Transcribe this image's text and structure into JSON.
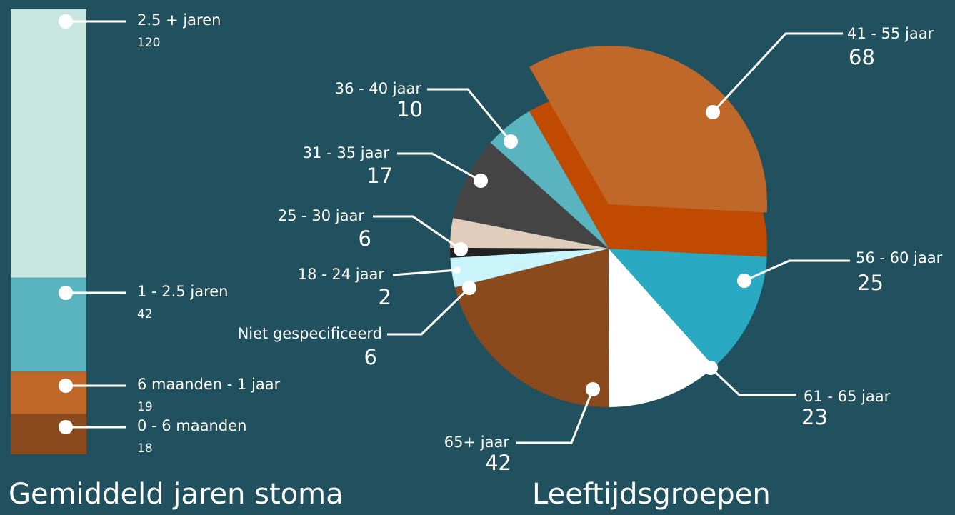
{
  "chart_data": [
    {
      "type": "stacked-column",
      "title": "Gemiddeld jaren stoma",
      "categories": [
        "2.5 + jaren",
        "1 - 2.5 jaren",
        "6 maanden - 1 jaar",
        "0 - 6 maanden"
      ],
      "values": [
        120,
        42,
        19,
        18
      ],
      "colors": [
        "#c8e6e0",
        "#5ab4c0",
        "#c0672a",
        "#8a4a1e"
      ]
    },
    {
      "type": "pie",
      "title": "Leeftijdsgroepen",
      "categories": [
        "41 -  55 jaar",
        "56 -  60 jaar",
        "61 -  65 jaar",
        "65+ jaar",
        "Niet gespecificeerd",
        "18 - 24 jaar",
        "25 - 30 jaar",
        "31 - 35 jaar",
        "36 - 40 jaar"
      ],
      "values": [
        68,
        25,
        23,
        42,
        6,
        2,
        6,
        17,
        10
      ],
      "colors": [
        "#c0672a",
        "#29a9c2",
        "#ffffff",
        "#8a4a1e",
        "#c8f4fa",
        "#222222",
        "#e0cdbc",
        "#444444",
        "#5ab4c0"
      ]
    }
  ]
}
